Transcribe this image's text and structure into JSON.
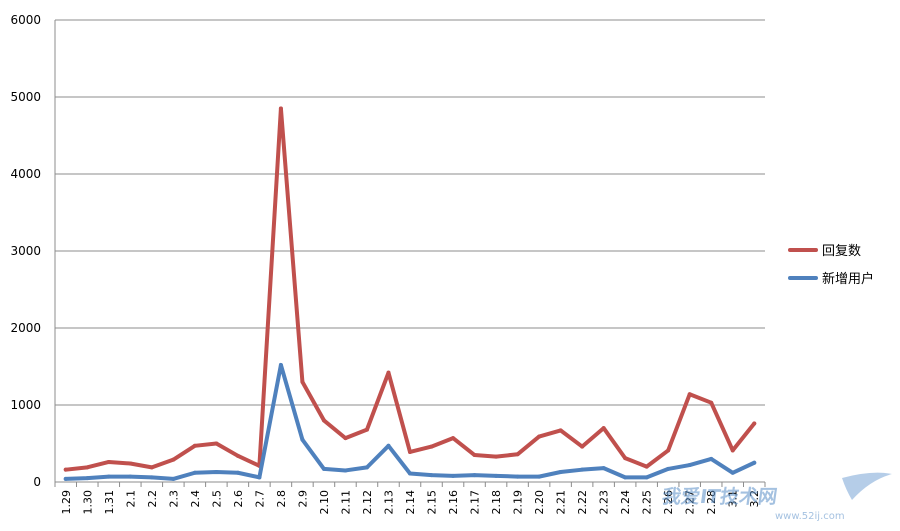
{
  "chart_data": {
    "type": "line",
    "title": "",
    "xlabel": "",
    "ylabel": "",
    "ylim": [
      0,
      6000
    ],
    "yticks": [
      0,
      1000,
      2000,
      3000,
      4000,
      5000,
      6000
    ],
    "grid": true,
    "legend_position": "right",
    "categories": [
      "1.29",
      "1.30",
      "1.31",
      "2.1",
      "2.2",
      "2.3",
      "2.4",
      "2.5",
      "2.6",
      "2.7",
      "2.8",
      "2.9",
      "2.10",
      "2.11",
      "2.12",
      "2.13",
      "2.14",
      "2.15",
      "2.16",
      "2.17",
      "2.18",
      "2.19",
      "2.20",
      "2.21",
      "2.22",
      "2.23",
      "2.24",
      "2.25",
      "2.26",
      "2.27",
      "2.28",
      "3.1",
      "3.2"
    ],
    "series": [
      {
        "name": "回复数",
        "color": "#c0504d",
        "values": [
          160,
          190,
          260,
          240,
          190,
          290,
          470,
          500,
          340,
          210,
          4850,
          1300,
          800,
          570,
          680,
          1420,
          390,
          460,
          570,
          350,
          330,
          360,
          590,
          670,
          460,
          700,
          310,
          200,
          410,
          1140,
          1030,
          410,
          760
        ]
      },
      {
        "name": "新增用户",
        "color": "#4f81bd",
        "values": [
          40,
          50,
          70,
          70,
          60,
          40,
          120,
          130,
          120,
          60,
          1520,
          550,
          170,
          150,
          190,
          470,
          110,
          90,
          80,
          90,
          80,
          70,
          70,
          130,
          160,
          180,
          60,
          60,
          170,
          220,
          300,
          120,
          250
        ]
      }
    ]
  },
  "watermark": {
    "text": "我爱IT技术网",
    "url": "www.52ij.com"
  }
}
